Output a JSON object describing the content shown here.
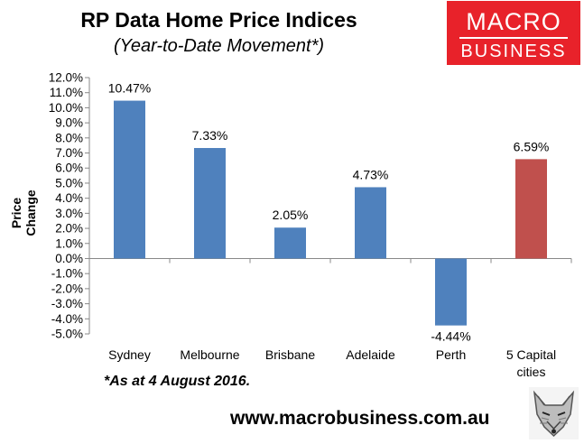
{
  "header": {
    "title": "RP Data Home Price Indices",
    "subtitle": "(Year-to-Date Movement*)"
  },
  "logo": {
    "line1": "MACRO",
    "line2": "BUSINESS",
    "color": "#e8222a"
  },
  "footer": {
    "note": "*As at 4 August 2016.",
    "url": "www.macrobusiness.com.au",
    "mascot_icon": "fox-head-icon"
  },
  "chart_data": {
    "type": "bar",
    "ylabel": "Price Change",
    "categories": [
      "Sydney",
      "Melbourne",
      "Brisbane",
      "Adelaide",
      "Perth",
      "5 Capital cities"
    ],
    "category_lines": [
      [
        "Sydney"
      ],
      [
        "Melbourne"
      ],
      [
        "Brisbane"
      ],
      [
        "Adelaide"
      ],
      [
        "Perth"
      ],
      [
        "5 Capital",
        "cities"
      ]
    ],
    "values": [
      10.47,
      7.33,
      2.05,
      4.73,
      -4.44,
      6.59
    ],
    "data_labels": [
      "10.47%",
      "7.33%",
      "2.05%",
      "4.73%",
      "-4.44%",
      "6.59%"
    ],
    "bar_colors": [
      "#4f81bd",
      "#4f81bd",
      "#4f81bd",
      "#4f81bd",
      "#4f81bd",
      "#c0504d"
    ],
    "ylim": [
      -5.0,
      12.0
    ],
    "yticks": [
      12.0,
      11.0,
      10.0,
      9.0,
      8.0,
      7.0,
      6.0,
      5.0,
      4.0,
      3.0,
      2.0,
      1.0,
      0.0,
      -1.0,
      -2.0,
      -3.0,
      -4.0,
      -5.0
    ],
    "ytick_labels": [
      "12.0%",
      "11.0%",
      "10.0%",
      "9.0%",
      "8.0%",
      "7.0%",
      "6.0%",
      "5.0%",
      "4.0%",
      "3.0%",
      "2.0%",
      "1.0%",
      "0.0%",
      "-1.0%",
      "-2.0%",
      "-3.0%",
      "-4.0%",
      "-5.0%"
    ],
    "grid": false,
    "legend": "none"
  }
}
